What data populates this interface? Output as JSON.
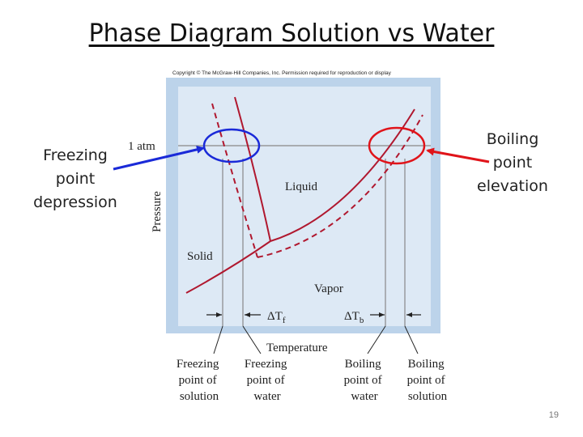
{
  "title": "Phase Diagram Solution vs Water",
  "left_callout": {
    "line1": "Freezing",
    "line2": "point",
    "line3": "depression"
  },
  "right_callout": {
    "line1": "Boiling",
    "line2": "point",
    "line3": "elevation"
  },
  "copyright": "Copyright © The McGraw-Hill Companies, Inc. Permission required for reproduction or display",
  "axis": {
    "y_label": "Pressure",
    "x_label": "Temperature",
    "pressure_marker": "1 atm"
  },
  "regions": {
    "solid": "Solid",
    "liquid": "Liquid",
    "vapor": "Vapor"
  },
  "deltas": {
    "tf_main": "ΔT",
    "tf_sub": "f",
    "tb_main": "ΔT",
    "tb_sub": "b"
  },
  "bottom_labels": [
    {
      "line1": "Freezing",
      "line2": "point of",
      "line3": "solution"
    },
    {
      "line1": "Freezing",
      "line2": "point of",
      "line3": "water"
    },
    {
      "line1": "Boiling",
      "line2": "point of",
      "line3": "water"
    },
    {
      "line1": "Boiling",
      "line2": "point of",
      "line3": "solution"
    }
  ],
  "slide_number": "19",
  "colors": {
    "curve": "#b0182f",
    "left_highlight": "#1a2ad8",
    "right_highlight": "#e0141a",
    "frame": "#bcd3ea",
    "plot_bg": "#dde9f5"
  }
}
